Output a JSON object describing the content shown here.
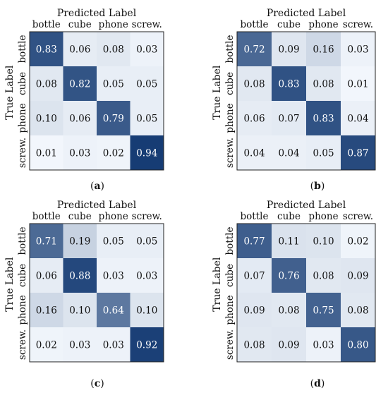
{
  "chart_data": [
    {
      "type": "heatmap",
      "panel_label": "(a)",
      "title": "Predicted Label",
      "ylabel": "True Label",
      "categories": [
        "bottle",
        "cube",
        "phone",
        "screw."
      ],
      "values": [
        [
          0.83,
          0.06,
          0.08,
          0.03
        ],
        [
          0.08,
          0.82,
          0.05,
          0.05
        ],
        [
          0.1,
          0.06,
          0.79,
          0.05
        ],
        [
          0.01,
          0.03,
          0.02,
          0.94
        ]
      ]
    },
    {
      "type": "heatmap",
      "panel_label": "(b)",
      "title": "Predicted Label",
      "ylabel": "True Label",
      "categories": [
        "bottle",
        "cube",
        "phone",
        "screw."
      ],
      "values": [
        [
          0.72,
          0.09,
          0.16,
          0.03
        ],
        [
          0.08,
          0.83,
          0.08,
          0.01
        ],
        [
          0.06,
          0.07,
          0.83,
          0.04
        ],
        [
          0.04,
          0.04,
          0.05,
          0.87
        ]
      ]
    },
    {
      "type": "heatmap",
      "panel_label": "(c)",
      "title": "Predicted Label",
      "ylabel": "True Label",
      "categories": [
        "bottle",
        "cube",
        "phone",
        "screw."
      ],
      "values": [
        [
          0.71,
          0.19,
          0.05,
          0.05
        ],
        [
          0.06,
          0.88,
          0.03,
          0.03
        ],
        [
          0.16,
          0.1,
          0.64,
          0.1
        ],
        [
          0.02,
          0.03,
          0.03,
          0.92
        ]
      ]
    },
    {
      "type": "heatmap",
      "panel_label": "(d)",
      "title": "Predicted Label",
      "ylabel": "True Label",
      "categories": [
        "bottle",
        "cube",
        "phone",
        "screw."
      ],
      "values": [
        [
          0.77,
          0.11,
          0.1,
          0.02
        ],
        [
          0.07,
          0.76,
          0.08,
          0.09
        ],
        [
          0.09,
          0.08,
          0.75,
          0.08
        ],
        [
          0.08,
          0.09,
          0.03,
          0.8
        ]
      ]
    }
  ],
  "colors": {
    "low": "#f4f8fd",
    "high": "#08306b",
    "text_dark": "#111111",
    "text_light": "#ffffff"
  }
}
